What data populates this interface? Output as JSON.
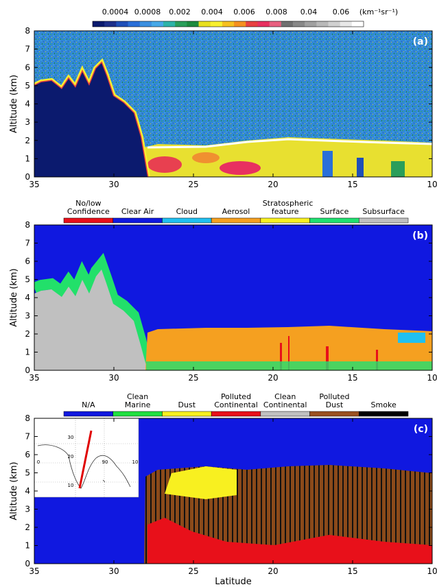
{
  "chart_data": [
    {
      "type": "curtain",
      "panel_label": "(a)",
      "ylabel": "Altitude (km)",
      "xlim": [
        35,
        10
      ],
      "xticks": [
        35,
        30,
        25,
        20,
        15,
        10
      ],
      "ylim": [
        0,
        8
      ],
      "yticks": [
        0,
        1,
        2,
        3,
        4,
        5,
        6,
        7,
        8
      ],
      "colorbar": {
        "ticks": [
          0.0004,
          0.0008,
          0.002,
          0.004,
          0.006,
          0.008,
          0.04,
          0.06
        ],
        "unit": "(km⁻¹sr⁻¹)",
        "colors": [
          "#0b1a6e",
          "#1d2f8a",
          "#1f4fb8",
          "#2a6fd8",
          "#3a8fe0",
          "#45a8e8",
          "#2db3a8",
          "#2a9e5a",
          "#1d8a3e",
          "#e8e020",
          "#f8f030",
          "#f6c020",
          "#f59020",
          "#e84040",
          "#e83060",
          "#e86080",
          "#707070",
          "#888888",
          "#a0a0a0",
          "#b8b8b8",
          "#d0d0d0",
          "#e8e8e8",
          "#ffffff"
        ]
      }
    },
    {
      "type": "curtain",
      "panel_label": "(b)",
      "ylabel": "Altitude (km)",
      "xlim": [
        35,
        10
      ],
      "xticks": [
        35,
        30,
        25,
        20,
        15,
        10
      ],
      "ylim": [
        0,
        8
      ],
      "yticks": [
        0,
        1,
        2,
        3,
        4,
        5,
        6,
        7,
        8
      ],
      "legend": {
        "labels": [
          "No/low Confidence",
          "Clear Air",
          "Cloud",
          "Aerosol",
          "Stratospheric feature",
          "Surface",
          "Subsurface"
        ],
        "colors": [
          "#e8101a",
          "#1018e0",
          "#20c0f0",
          "#f5a020",
          "#f8f020",
          "#20e070",
          "#c0c0c0"
        ]
      }
    },
    {
      "type": "curtain",
      "panel_label": "(c)",
      "ylabel": "Altitude (km)",
      "xlabel": "Latitude",
      "xlim": [
        35,
        10
      ],
      "xticks": [
        35,
        30,
        25,
        20,
        15,
        10
      ],
      "ylim": [
        0,
        8
      ],
      "yticks": [
        0,
        1,
        2,
        3,
        4,
        5,
        6,
        7,
        8
      ],
      "legend": {
        "labels": [
          "N/A",
          "Clean Marine",
          "Dust",
          "Polluted Continental",
          "Clean Continental",
          "Polluted Dust",
          "Smoke"
        ],
        "colors": [
          "#1018e0",
          "#20e040",
          "#f8f020",
          "#e8101a",
          "#c0c0c0",
          "#9a5020",
          "#000000"
        ]
      },
      "inset": {
        "labels": [
          "30",
          "20",
          "0",
          "90",
          "10",
          "10"
        ]
      }
    }
  ]
}
